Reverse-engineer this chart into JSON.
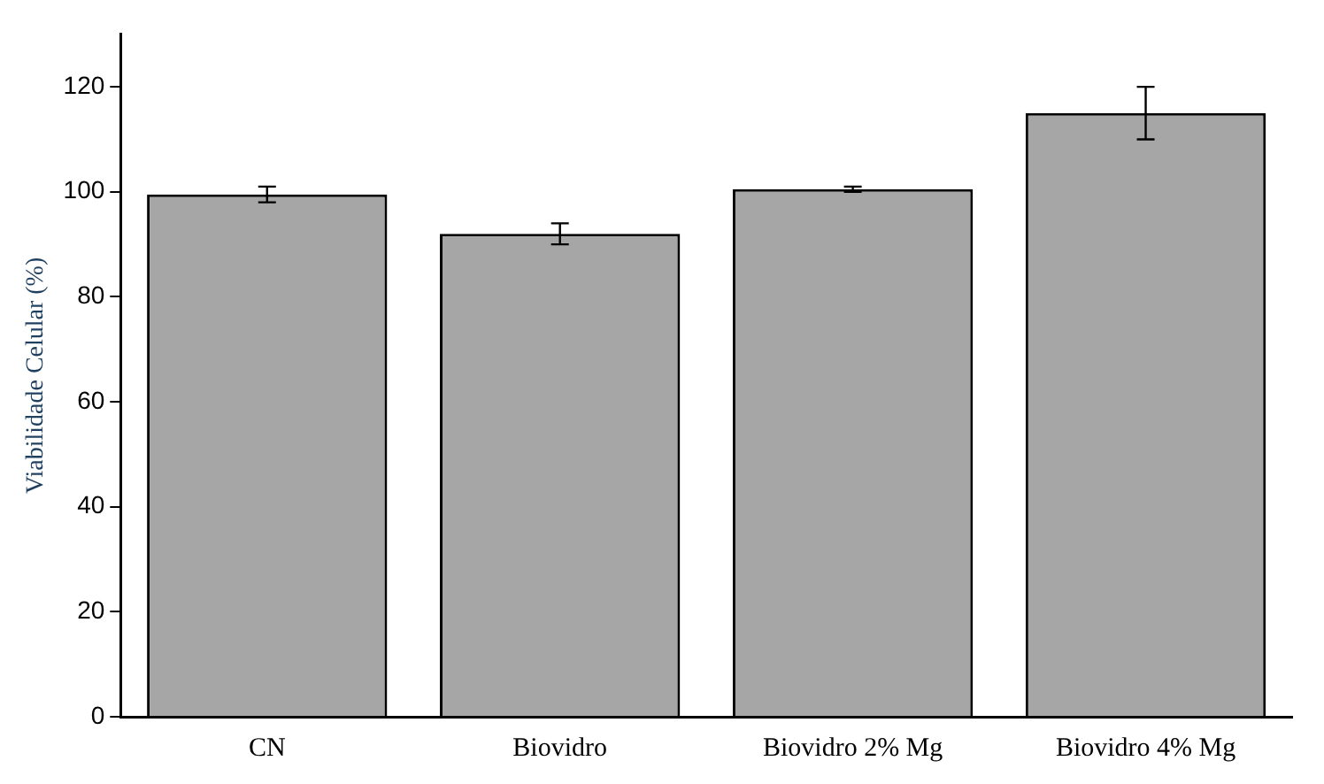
{
  "chart_data": {
    "type": "bar",
    "ylabel": "Viabilidade Celular (%)",
    "categories": [
      "CN",
      "Biovidro",
      "Biovidro 2% Mg",
      "Biovidro 4% Mg"
    ],
    "values": [
      99.5,
      92,
      100.5,
      115
    ],
    "errors": [
      1.5,
      2,
      0.5,
      5
    ],
    "color": "#a6a6a6",
    "ylim": [
      0,
      130
    ],
    "yticks": [
      0,
      20,
      40,
      60,
      80,
      100,
      120
    ],
    "grid": false,
    "legend": false
  }
}
